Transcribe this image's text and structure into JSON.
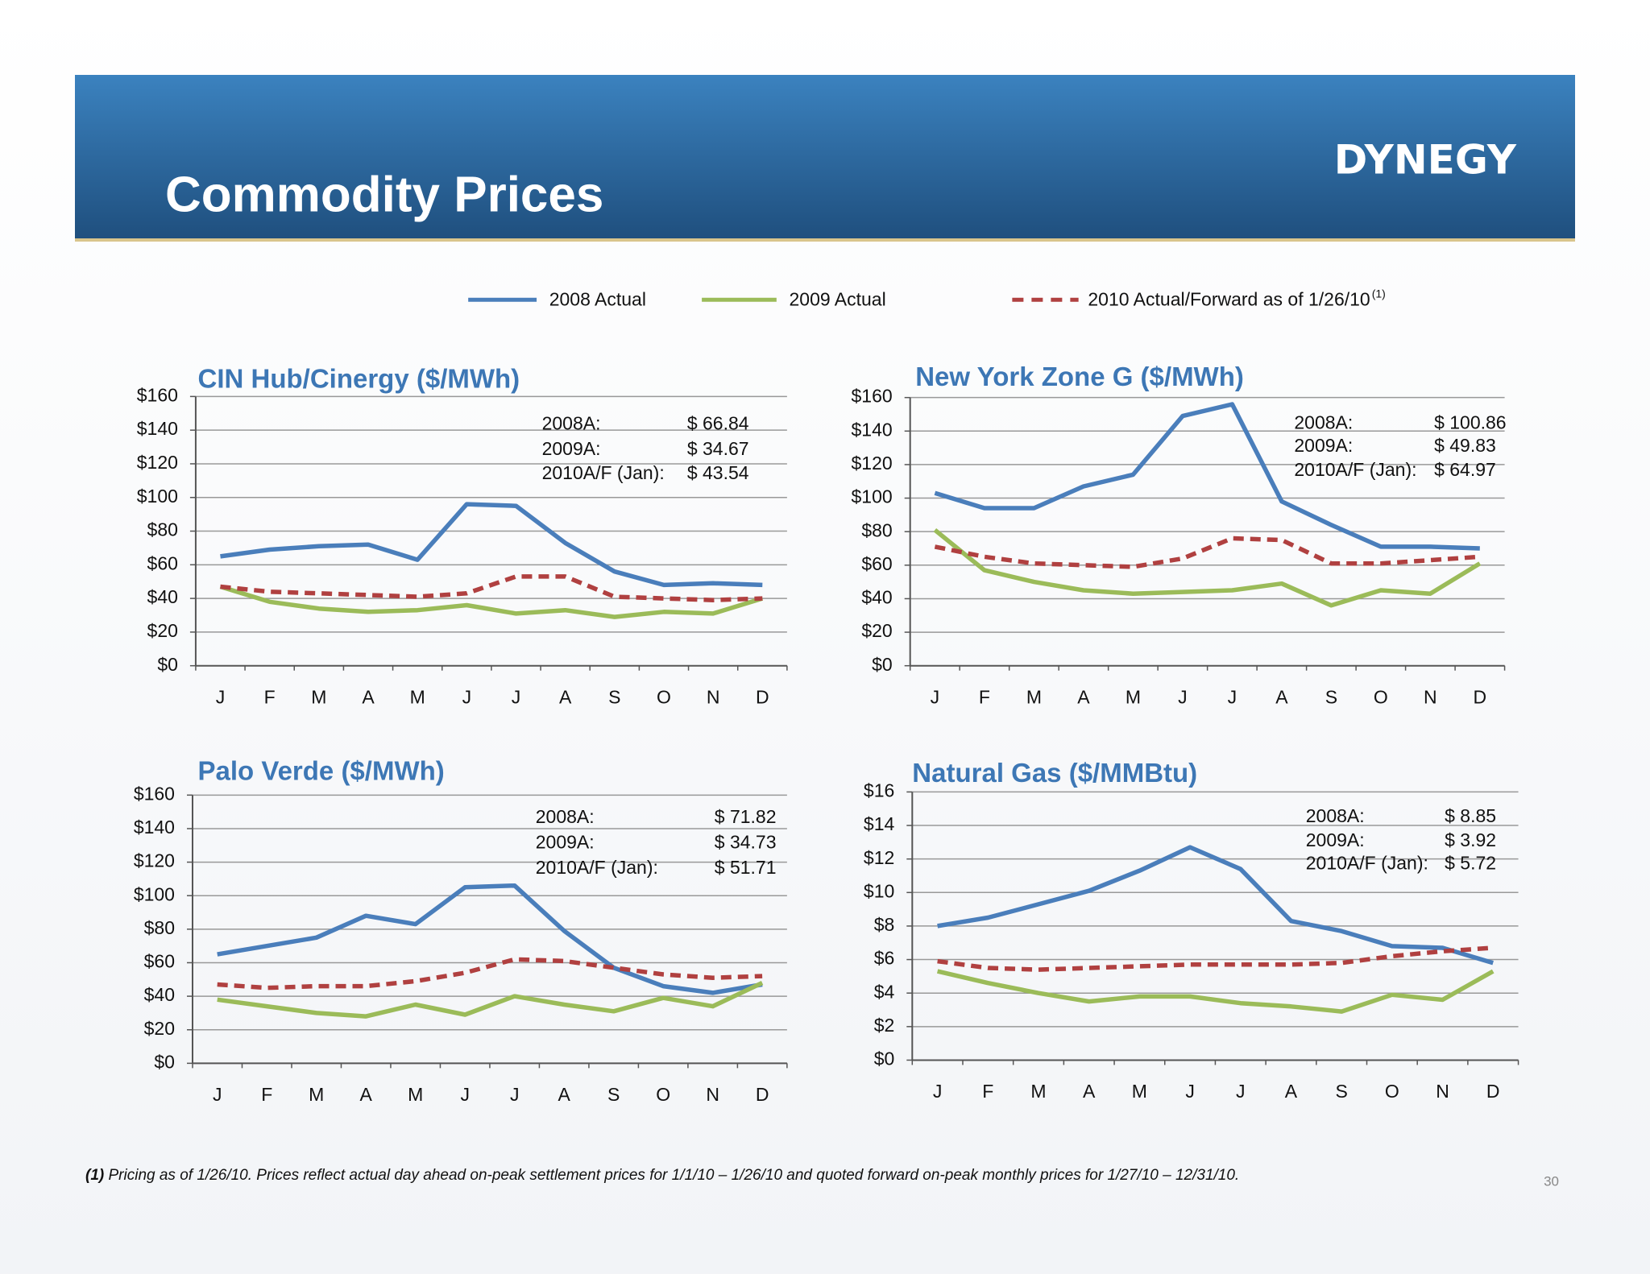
{
  "header": {
    "title": "Commodity Prices",
    "logo": "DYNEGY"
  },
  "legend_note": "(1)",
  "footnote": {
    "marker": "(1)",
    "text": " Pricing as of 1/26/10.  Prices reflect actual day ahead on-peak settlement prices for 1/1/10 – 1/26/10 and quoted forward on-peak monthly prices for 1/27/10 – 12/31/10."
  },
  "page_number": "30",
  "chart_data": [
    {
      "type": "line",
      "title": "CIN Hub/Cinergy ($/MWh)",
      "categories": [
        "J",
        "F",
        "M",
        "A",
        "M",
        "J",
        "J",
        "A",
        "S",
        "O",
        "N",
        "D"
      ],
      "ylim": [
        0,
        160
      ],
      "yticks": [
        {
          "value": 0,
          "label": "$0"
        },
        {
          "value": 20,
          "label": "$20"
        },
        {
          "value": 40,
          "label": "$40"
        },
        {
          "value": 60,
          "label": "$60"
        },
        {
          "value": 80,
          "label": "$80"
        },
        {
          "value": 100,
          "label": "$100"
        },
        {
          "value": 120,
          "label": "$120"
        },
        {
          "value": 140,
          "label": "$140"
        },
        {
          "value": 160,
          "label": "$160"
        }
      ],
      "grid": true,
      "series": [
        {
          "name": "2008 Actual",
          "color": "#4a7ebb",
          "values": [
            65,
            69,
            71,
            72,
            63,
            96,
            95,
            73,
            56,
            48,
            49,
            48
          ]
        },
        {
          "name": "2009 Actual",
          "color": "#9bbb59",
          "values": [
            47,
            38,
            34,
            32,
            33,
            36,
            31,
            33,
            29,
            32,
            31,
            40
          ]
        },
        {
          "name": "2010 Actual/Forward as of 1/26/10",
          "color": "#b04040",
          "dashed": true,
          "values": [
            47,
            44,
            43,
            42,
            41,
            43,
            53,
            53,
            41,
            40,
            39,
            40
          ]
        }
      ],
      "annotation": [
        {
          "label": "2008A:",
          "value": "$ 66.84"
        },
        {
          "label": "2009A:",
          "value": "$ 34.67"
        },
        {
          "label": "2010A/F (Jan):",
          "value": "$ 43.54"
        }
      ]
    },
    {
      "type": "line",
      "title": "New York Zone G ($/MWh)",
      "categories": [
        "J",
        "F",
        "M",
        "A",
        "M",
        "J",
        "J",
        "A",
        "S",
        "O",
        "N",
        "D"
      ],
      "ylim": [
        0,
        160
      ],
      "yticks": [
        {
          "value": 0,
          "label": "$0"
        },
        {
          "value": 20,
          "label": "$20"
        },
        {
          "value": 40,
          "label": "$40"
        },
        {
          "value": 60,
          "label": "$60"
        },
        {
          "value": 80,
          "label": "$80"
        },
        {
          "value": 100,
          "label": "$100"
        },
        {
          "value": 120,
          "label": "$120"
        },
        {
          "value": 140,
          "label": "$140"
        },
        {
          "value": 160,
          "label": "$160"
        }
      ],
      "grid": true,
      "series": [
        {
          "color": "#4a7ebb",
          "values": [
            103,
            94,
            94,
            107,
            114,
            149,
            156,
            98,
            84,
            71,
            71,
            70
          ]
        },
        {
          "color": "#9bbb59",
          "values": [
            81,
            57,
            50,
            45,
            43,
            44,
            45,
            49,
            36,
            45,
            43,
            61
          ]
        },
        {
          "color": "#b04040",
          "dashed": true,
          "values": [
            71,
            65,
            61,
            60,
            59,
            64,
            76,
            75,
            61,
            61,
            63,
            65
          ]
        }
      ],
      "annotation": [
        {
          "label": "2008A:",
          "value": "$ 100.86"
        },
        {
          "label": "2009A:",
          "value": "$  49.83"
        },
        {
          "label": "2010A/F (Jan):",
          "value": "$  64.97"
        }
      ]
    },
    {
      "type": "line",
      "title": "Palo Verde ($/MWh)",
      "categories": [
        "J",
        "F",
        "M",
        "A",
        "M",
        "J",
        "J",
        "A",
        "S",
        "O",
        "N",
        "D"
      ],
      "ylim": [
        0,
        160
      ],
      "yticks": [
        {
          "value": 0,
          "label": "$0"
        },
        {
          "value": 20,
          "label": "$20"
        },
        {
          "value": 40,
          "label": "$40"
        },
        {
          "value": 60,
          "label": "$60"
        },
        {
          "value": 80,
          "label": "$80"
        },
        {
          "value": 100,
          "label": "$100"
        },
        {
          "value": 120,
          "label": "$120"
        },
        {
          "value": 140,
          "label": "$140"
        },
        {
          "value": 160,
          "label": "$160"
        }
      ],
      "grid": true,
      "series": [
        {
          "color": "#4a7ebb",
          "values": [
            65,
            70,
            75,
            88,
            83,
            105,
            106,
            79,
            57,
            46,
            42,
            47
          ]
        },
        {
          "color": "#9bbb59",
          "values": [
            38,
            34,
            30,
            28,
            35,
            29,
            40,
            35,
            31,
            39,
            34,
            48
          ]
        },
        {
          "color": "#b04040",
          "dashed": true,
          "values": [
            47,
            45,
            46,
            46,
            49,
            54,
            62,
            61,
            57,
            53,
            51,
            52
          ]
        }
      ],
      "annotation": [
        {
          "label": "2008A:",
          "value": "$ 71.82"
        },
        {
          "label": "2009A:",
          "value": "$ 34.73"
        },
        {
          "label": "2010A/F (Jan):",
          "value": "$ 51.71"
        }
      ]
    },
    {
      "type": "line",
      "title": "Natural Gas ($/MMBtu)",
      "categories": [
        "J",
        "F",
        "M",
        "A",
        "M",
        "J",
        "J",
        "A",
        "S",
        "O",
        "N",
        "D"
      ],
      "ylim": [
        0,
        16
      ],
      "yticks": [
        {
          "value": 0,
          "label": "$0"
        },
        {
          "value": 2,
          "label": "$2"
        },
        {
          "value": 4,
          "label": "$4"
        },
        {
          "value": 6,
          "label": "$6"
        },
        {
          "value": 8,
          "label": "$8"
        },
        {
          "value": 10,
          "label": "$10"
        },
        {
          "value": 12,
          "label": "$12"
        },
        {
          "value": 14,
          "label": "$14"
        },
        {
          "value": 16,
          "label": "$16"
        }
      ],
      "grid": true,
      "series": [
        {
          "color": "#4a7ebb",
          "values": [
            8.0,
            8.5,
            9.3,
            10.1,
            11.3,
            12.7,
            11.4,
            8.3,
            7.7,
            6.8,
            6.7,
            5.8
          ]
        },
        {
          "color": "#9bbb59",
          "values": [
            5.3,
            4.6,
            4.0,
            3.5,
            3.8,
            3.8,
            3.4,
            3.2,
            2.9,
            3.9,
            3.6,
            5.3
          ]
        },
        {
          "color": "#b04040",
          "dashed": true,
          "values": [
            5.9,
            5.5,
            5.4,
            5.5,
            5.6,
            5.7,
            5.7,
            5.7,
            5.8,
            6.2,
            6.5,
            6.7
          ]
        }
      ],
      "annotation": [
        {
          "label": "2008A:",
          "value": "$  8.85"
        },
        {
          "label": "2009A:",
          "value": "$  3.92"
        },
        {
          "label": "2010A/F (Jan):",
          "value": "$  5.72"
        }
      ]
    }
  ]
}
